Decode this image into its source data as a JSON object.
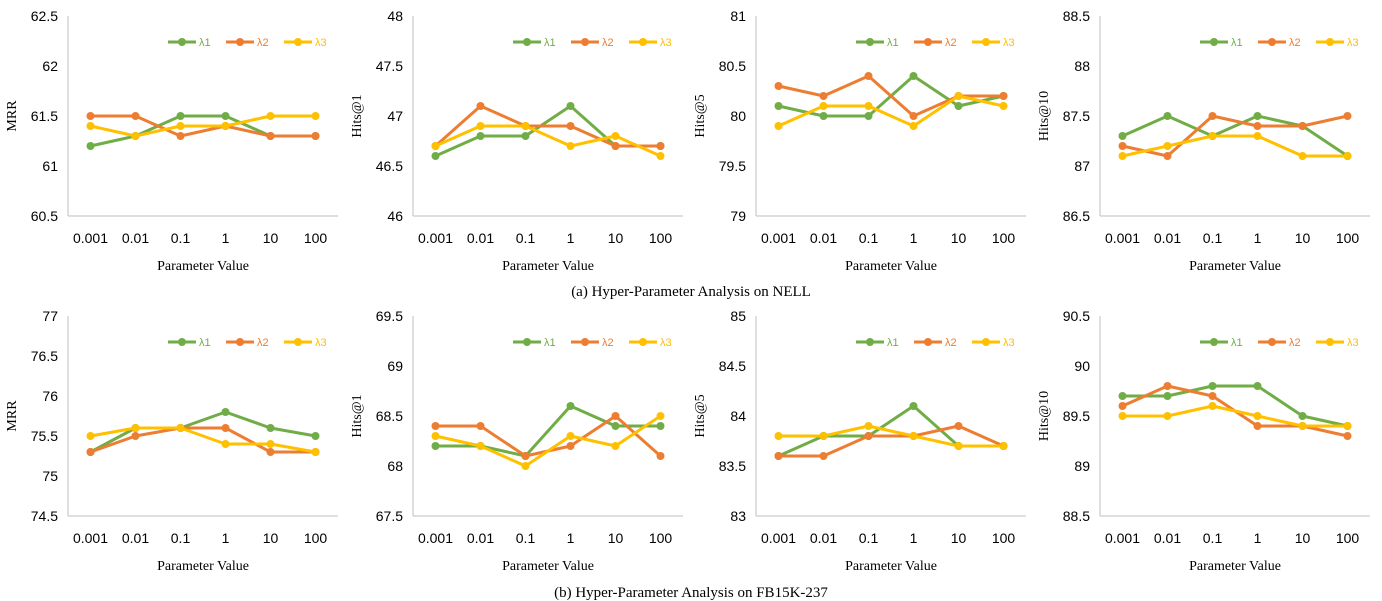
{
  "colors": {
    "lambda1": "#70ad47",
    "lambda2": "#ed7d31",
    "lambda3": "#ffc000"
  },
  "captions": [
    "(a) Hyper-Parameter Analysis on NELL",
    "(b) Hyper-Parameter Analysis on FB15K-237"
  ],
  "chart_data": [
    {
      "type": "line",
      "group": "a",
      "xlabel": "Parameter Value",
      "ylabel": "MRR",
      "categories": [
        "0.001",
        "0.01",
        "0.1",
        "1",
        "10",
        "100"
      ],
      "ylim": [
        60.5,
        62.5
      ],
      "yticks": [
        "60.5",
        "61",
        "61.5",
        "62",
        "62.5"
      ],
      "legend": "top-right",
      "series": [
        {
          "name": "λ1",
          "values": [
            61.2,
            61.3,
            61.5,
            61.5,
            61.3,
            61.3
          ]
        },
        {
          "name": "λ2",
          "values": [
            61.5,
            61.5,
            61.3,
            61.4,
            61.3,
            61.3
          ]
        },
        {
          "name": "λ3",
          "values": [
            61.4,
            61.3,
            61.4,
            61.4,
            61.5,
            61.5
          ]
        }
      ]
    },
    {
      "type": "line",
      "group": "a",
      "xlabel": "Parameter Value",
      "ylabel": "Hits@1",
      "categories": [
        "0.001",
        "0.01",
        "0.1",
        "1",
        "10",
        "100"
      ],
      "ylim": [
        46,
        48
      ],
      "yticks": [
        "46",
        "46.5",
        "47",
        "47.5",
        "48"
      ],
      "legend": "top-right",
      "series": [
        {
          "name": "λ1",
          "values": [
            46.6,
            46.8,
            46.8,
            47.1,
            46.7,
            46.7
          ]
        },
        {
          "name": "λ2",
          "values": [
            46.7,
            47.1,
            46.9,
            46.9,
            46.7,
            46.7
          ]
        },
        {
          "name": "λ3",
          "values": [
            46.7,
            46.9,
            46.9,
            46.7,
            46.8,
            46.6
          ]
        }
      ]
    },
    {
      "type": "line",
      "group": "a",
      "xlabel": "Parameter Value",
      "ylabel": "Hits@5",
      "categories": [
        "0.001",
        "0.01",
        "0.1",
        "1",
        "10",
        "100"
      ],
      "ylim": [
        79,
        81
      ],
      "yticks": [
        "79",
        "79.5",
        "80",
        "80.5",
        "81"
      ],
      "legend": "top-right",
      "series": [
        {
          "name": "λ1",
          "values": [
            80.1,
            80.0,
            80.0,
            80.4,
            80.1,
            80.2
          ]
        },
        {
          "name": "λ2",
          "values": [
            80.3,
            80.2,
            80.4,
            80.0,
            80.2,
            80.2
          ]
        },
        {
          "name": "λ3",
          "values": [
            79.9,
            80.1,
            80.1,
            79.9,
            80.2,
            80.1
          ]
        }
      ]
    },
    {
      "type": "line",
      "group": "a",
      "xlabel": "Parameter Value",
      "ylabel": "Hits@10",
      "categories": [
        "0.001",
        "0.01",
        "0.1",
        "1",
        "10",
        "100"
      ],
      "ylim": [
        86.5,
        88.5
      ],
      "yticks": [
        "86.5",
        "87",
        "87.5",
        "88",
        "88.5"
      ],
      "legend": "top-right",
      "series": [
        {
          "name": "λ1",
          "values": [
            87.3,
            87.5,
            87.3,
            87.5,
            87.4,
            87.1
          ]
        },
        {
          "name": "λ2",
          "values": [
            87.2,
            87.1,
            87.5,
            87.4,
            87.4,
            87.5
          ]
        },
        {
          "name": "λ3",
          "values": [
            87.1,
            87.2,
            87.3,
            87.3,
            87.1,
            87.1
          ]
        }
      ]
    },
    {
      "type": "line",
      "group": "b",
      "xlabel": "Parameter Value",
      "ylabel": "MRR",
      "categories": [
        "0.001",
        "0.01",
        "0.1",
        "1",
        "10",
        "100"
      ],
      "ylim": [
        74.5,
        77
      ],
      "yticks": [
        "74.5",
        "75",
        "75.5",
        "76",
        "76.5",
        "77"
      ],
      "legend": "top-right",
      "series": [
        {
          "name": "λ1",
          "values": [
            75.3,
            75.6,
            75.6,
            75.8,
            75.6,
            75.5
          ]
        },
        {
          "name": "λ2",
          "values": [
            75.3,
            75.5,
            75.6,
            75.6,
            75.3,
            75.3
          ]
        },
        {
          "name": "λ3",
          "values": [
            75.5,
            75.6,
            75.6,
            75.4,
            75.4,
            75.3
          ]
        }
      ]
    },
    {
      "type": "line",
      "group": "b",
      "xlabel": "Parameter Value",
      "ylabel": "Hits@1",
      "categories": [
        "0.001",
        "0.01",
        "0.1",
        "1",
        "10",
        "100"
      ],
      "ylim": [
        67.5,
        69.5
      ],
      "yticks": [
        "67.5",
        "68",
        "68.5",
        "69",
        "69.5"
      ],
      "legend": "top-right",
      "series": [
        {
          "name": "λ1",
          "values": [
            68.2,
            68.2,
            68.1,
            68.6,
            68.4,
            68.4
          ]
        },
        {
          "name": "λ2",
          "values": [
            68.4,
            68.4,
            68.1,
            68.2,
            68.5,
            68.1
          ]
        },
        {
          "name": "λ3",
          "values": [
            68.3,
            68.2,
            68.0,
            68.3,
            68.2,
            68.5
          ]
        }
      ]
    },
    {
      "type": "line",
      "group": "b",
      "xlabel": "Parameter Value",
      "ylabel": "Hits@5",
      "categories": [
        "0.001",
        "0.01",
        "0.1",
        "1",
        "10",
        "100"
      ],
      "ylim": [
        83,
        85
      ],
      "yticks": [
        "83",
        "83.5",
        "84",
        "84.5",
        "85"
      ],
      "legend": "top-right",
      "series": [
        {
          "name": "λ1",
          "values": [
            83.6,
            83.8,
            83.8,
            84.1,
            83.7,
            83.7
          ]
        },
        {
          "name": "λ2",
          "values": [
            83.6,
            83.6,
            83.8,
            83.8,
            83.9,
            83.7
          ]
        },
        {
          "name": "λ3",
          "values": [
            83.8,
            83.8,
            83.9,
            83.8,
            83.7,
            83.7
          ]
        }
      ]
    },
    {
      "type": "line",
      "group": "b",
      "xlabel": "Parameter Value",
      "ylabel": "Hits@10",
      "categories": [
        "0.001",
        "0.01",
        "0.1",
        "1",
        "10",
        "100"
      ],
      "ylim": [
        88.5,
        90.5
      ],
      "yticks": [
        "88.5",
        "89",
        "89.5",
        "90",
        "90.5"
      ],
      "legend": "top-right",
      "series": [
        {
          "name": "λ1",
          "values": [
            89.7,
            89.7,
            89.8,
            89.8,
            89.5,
            89.4
          ]
        },
        {
          "name": "λ2",
          "values": [
            89.6,
            89.8,
            89.7,
            89.4,
            89.4,
            89.3
          ]
        },
        {
          "name": "λ3",
          "values": [
            89.5,
            89.5,
            89.6,
            89.5,
            89.4,
            89.4
          ]
        }
      ]
    }
  ]
}
